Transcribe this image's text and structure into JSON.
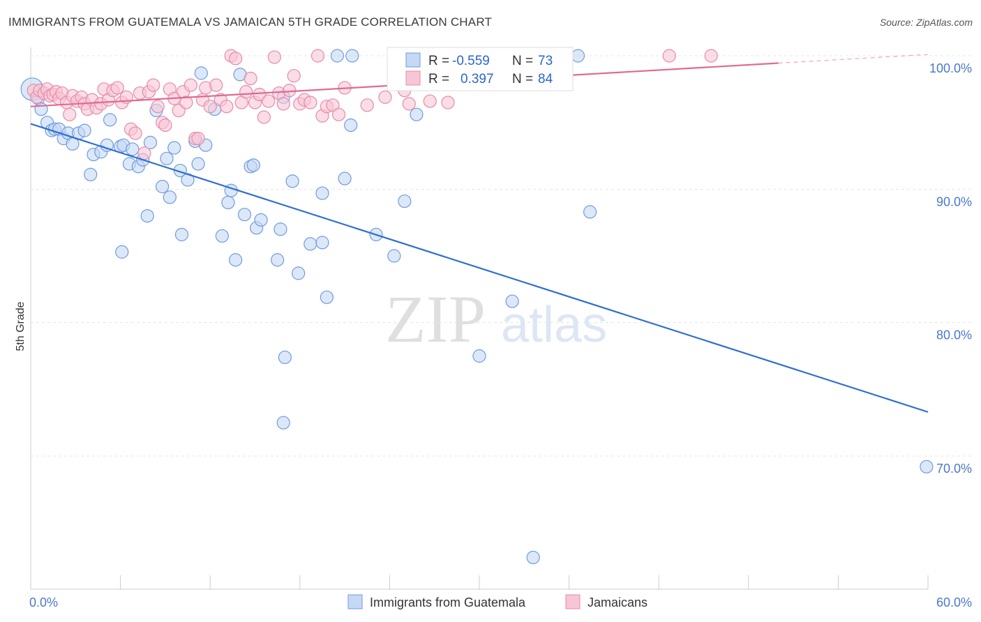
{
  "header": {
    "title": "IMMIGRANTS FROM GUATEMALA VS JAMAICAN 5TH GRADE CORRELATION CHART",
    "source": "Source: ZipAtlas.com"
  },
  "watermark": {
    "zip": "ZIP",
    "atlas": "atlas"
  },
  "chart_data": {
    "type": "scatter",
    "ylabel": "5th Grade",
    "xlim": [
      0,
      60
    ],
    "ylim": [
      62,
      101
    ],
    "x_ticks": [
      {
        "value": 0,
        "label": "0.0%"
      },
      {
        "value": 60,
        "label": "60.0%"
      }
    ],
    "y_ticks": [
      {
        "value": 100,
        "label": "100.0%"
      },
      {
        "value": 90,
        "label": "90.0%"
      },
      {
        "value": 80,
        "label": "80.0%"
      },
      {
        "value": 70,
        "label": "70.0%"
      }
    ],
    "grid": true,
    "legend": {
      "placement": "top-center",
      "entries": [
        {
          "r_label": "R =",
          "r_value": "-0.559",
          "n_label": "N =",
          "n_value": "73"
        },
        {
          "r_label": "R =",
          "r_value": "0.397",
          "n_label": "N =",
          "n_value": "84"
        }
      ]
    },
    "series": [
      {
        "name": "Immigrants from Guatemala",
        "color": "#6f9be0",
        "fill": "#c5d8f4",
        "trend": {
          "x0": 0,
          "y0": 94.9,
          "x1": 60,
          "y1": 73.3
        },
        "points": [
          [
            0.1,
            97.5
          ],
          [
            0.5,
            96.8
          ],
          [
            0.7,
            96.0
          ],
          [
            1.1,
            95.0
          ],
          [
            1.4,
            94.4
          ],
          [
            1.6,
            94.5
          ],
          [
            1.9,
            94.5
          ],
          [
            2.2,
            93.8
          ],
          [
            2.5,
            94.2
          ],
          [
            2.8,
            93.4
          ],
          [
            3.2,
            94.2
          ],
          [
            3.6,
            94.4
          ],
          [
            4.0,
            91.1
          ],
          [
            4.2,
            92.6
          ],
          [
            4.7,
            92.8
          ],
          [
            5.1,
            93.3
          ],
          [
            5.3,
            95.2
          ],
          [
            6.0,
            93.2
          ],
          [
            6.2,
            93.3
          ],
          [
            6.1,
            85.3
          ],
          [
            6.6,
            91.9
          ],
          [
            6.8,
            93.0
          ],
          [
            7.2,
            91.7
          ],
          [
            7.5,
            92.2
          ],
          [
            7.8,
            88.0
          ],
          [
            8.0,
            93.5
          ],
          [
            8.4,
            95.9
          ],
          [
            8.8,
            90.2
          ],
          [
            9.1,
            92.3
          ],
          [
            9.3,
            89.4
          ],
          [
            9.6,
            93.1
          ],
          [
            10.0,
            91.4
          ],
          [
            10.1,
            86.6
          ],
          [
            10.5,
            90.7
          ],
          [
            11.0,
            93.6
          ],
          [
            11.2,
            91.9
          ],
          [
            11.4,
            98.7
          ],
          [
            11.7,
            93.3
          ],
          [
            12.3,
            96.0
          ],
          [
            12.8,
            86.5
          ],
          [
            13.2,
            89.0
          ],
          [
            13.4,
            89.9
          ],
          [
            13.7,
            84.7
          ],
          [
            14.0,
            98.6
          ],
          [
            14.3,
            88.1
          ],
          [
            14.7,
            91.7
          ],
          [
            14.9,
            91.8
          ],
          [
            15.1,
            87.1
          ],
          [
            15.4,
            87.7
          ],
          [
            16.5,
            84.7
          ],
          [
            16.7,
            87.0
          ],
          [
            16.9,
            96.9
          ],
          [
            17.0,
            77.4
          ],
          [
            16.9,
            72.5
          ],
          [
            17.5,
            90.6
          ],
          [
            17.9,
            83.7
          ],
          [
            18.7,
            85.9
          ],
          [
            19.5,
            86.0
          ],
          [
            19.5,
            89.7
          ],
          [
            19.8,
            81.9
          ],
          [
            20.5,
            100.0
          ],
          [
            21.0,
            90.8
          ],
          [
            21.4,
            94.8
          ],
          [
            21.5,
            100.0
          ],
          [
            23.1,
            86.6
          ],
          [
            24.3,
            85.0
          ],
          [
            25.0,
            89.1
          ],
          [
            25.8,
            95.6
          ],
          [
            30.0,
            77.5
          ],
          [
            32.2,
            81.6
          ],
          [
            33.6,
            62.4
          ],
          [
            36.6,
            100.0
          ],
          [
            37.4,
            88.3
          ],
          [
            59.9,
            69.2
          ]
        ]
      },
      {
        "name": "Jamaicans",
        "color": "#e88aa8",
        "fill": "#f6c6d6",
        "trend": {
          "x0": 0,
          "y0": 96.2,
          "x1": 60,
          "y1": 100.1
        },
        "points": [
          [
            0.2,
            97.4
          ],
          [
            0.4,
            96.9
          ],
          [
            0.6,
            97.4
          ],
          [
            0.9,
            97.2
          ],
          [
            1.1,
            97.5
          ],
          [
            1.3,
            97.0
          ],
          [
            1.5,
            97.1
          ],
          [
            1.7,
            97.3
          ],
          [
            1.9,
            96.8
          ],
          [
            2.1,
            97.2
          ],
          [
            2.4,
            96.5
          ],
          [
            2.6,
            95.6
          ],
          [
            2.8,
            97.0
          ],
          [
            3.1,
            96.6
          ],
          [
            3.4,
            96.9
          ],
          [
            3.6,
            96.4
          ],
          [
            3.8,
            96.0
          ],
          [
            4.1,
            96.7
          ],
          [
            4.4,
            96.1
          ],
          [
            4.7,
            96.4
          ],
          [
            4.9,
            97.5
          ],
          [
            5.2,
            96.7
          ],
          [
            5.5,
            97.4
          ],
          [
            5.8,
            97.6
          ],
          [
            6.1,
            96.5
          ],
          [
            6.4,
            96.9
          ],
          [
            6.7,
            94.5
          ],
          [
            7.0,
            94.2
          ],
          [
            7.3,
            97.2
          ],
          [
            7.6,
            92.7
          ],
          [
            7.9,
            97.3
          ],
          [
            8.2,
            97.8
          ],
          [
            8.5,
            96.2
          ],
          [
            8.8,
            95.0
          ],
          [
            9.0,
            94.8
          ],
          [
            9.3,
            97.5
          ],
          [
            9.6,
            96.8
          ],
          [
            9.9,
            95.9
          ],
          [
            10.2,
            97.3
          ],
          [
            10.4,
            96.5
          ],
          [
            10.7,
            97.8
          ],
          [
            11.0,
            93.8
          ],
          [
            11.2,
            93.8
          ],
          [
            11.5,
            96.7
          ],
          [
            11.7,
            97.6
          ],
          [
            12.0,
            96.2
          ],
          [
            12.4,
            97.8
          ],
          [
            12.7,
            96.7
          ],
          [
            13.1,
            96.2
          ],
          [
            13.4,
            100.0
          ],
          [
            13.7,
            99.8
          ],
          [
            14.1,
            96.5
          ],
          [
            14.4,
            97.3
          ],
          [
            14.7,
            98.3
          ],
          [
            15.0,
            96.5
          ],
          [
            15.3,
            97.1
          ],
          [
            15.6,
            95.4
          ],
          [
            15.9,
            96.6
          ],
          [
            16.3,
            99.9
          ],
          [
            16.6,
            97.2
          ],
          [
            16.9,
            96.4
          ],
          [
            17.3,
            97.4
          ],
          [
            17.6,
            98.5
          ],
          [
            18.0,
            96.4
          ],
          [
            18.3,
            96.7
          ],
          [
            18.7,
            96.5
          ],
          [
            19.2,
            100.0
          ],
          [
            19.5,
            95.5
          ],
          [
            19.8,
            96.2
          ],
          [
            20.2,
            96.3
          ],
          [
            20.6,
            95.6
          ],
          [
            21.0,
            97.6
          ],
          [
            22.5,
            96.3
          ],
          [
            23.7,
            96.9
          ],
          [
            24.8,
            100.0
          ],
          [
            25.0,
            97.4
          ],
          [
            25.3,
            96.4
          ],
          [
            26.7,
            96.6
          ],
          [
            27.9,
            96.5
          ],
          [
            28.9,
            100.0
          ],
          [
            30.9,
            98.1
          ],
          [
            35.3,
            99.5
          ],
          [
            42.7,
            100.0
          ],
          [
            45.5,
            100.0
          ]
        ]
      }
    ]
  },
  "bottom_legend": [
    {
      "label": "Immigrants from Guatemala"
    },
    {
      "label": "Jamaicans"
    }
  ]
}
